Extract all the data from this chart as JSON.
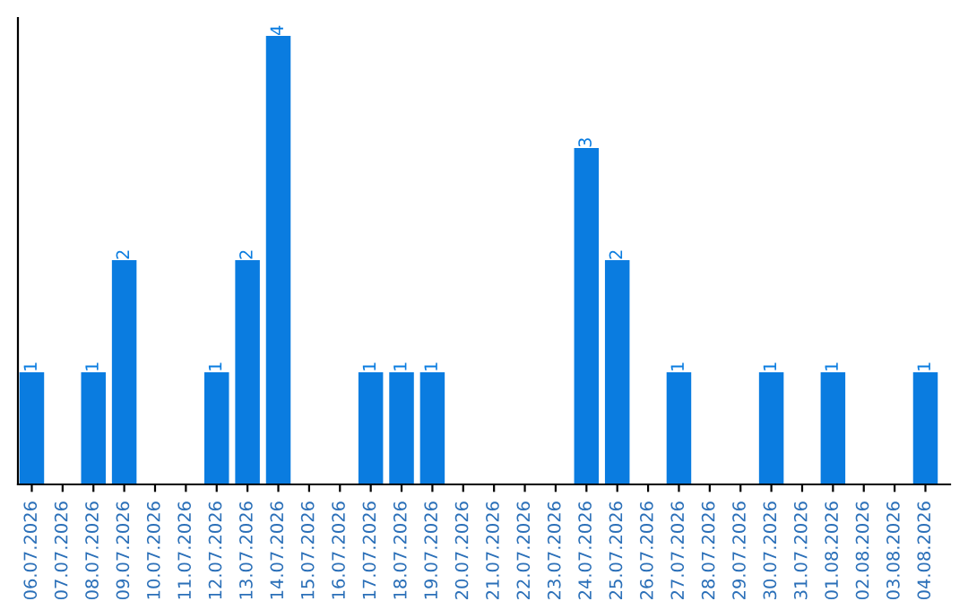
{
  "chart_data": {
    "type": "bar",
    "categories": [
      "06.07.2026",
      "07.07.2026",
      "08.07.2026",
      "09.07.2026",
      "10.07.2026",
      "11.07.2026",
      "12.07.2026",
      "13.07.2026",
      "14.07.2026",
      "15.07.2026",
      "16.07.2026",
      "17.07.2026",
      "18.07.2026",
      "19.07.2026",
      "20.07.2026",
      "21.07.2026",
      "22.07.2026",
      "23.07.2026",
      "24.07.2026",
      "25.07.2026",
      "26.07.2026",
      "27.07.2026",
      "28.07.2026",
      "29.07.2026",
      "30.07.2026",
      "31.07.2026",
      "01.08.2026",
      "02.08.2026",
      "03.08.2026",
      "04.08.2026"
    ],
    "values": [
      1,
      0,
      1,
      2,
      0,
      0,
      1,
      2,
      4,
      0,
      0,
      1,
      1,
      1,
      0,
      0,
      0,
      0,
      3,
      2,
      0,
      1,
      0,
      0,
      1,
      0,
      1,
      0,
      0,
      1
    ],
    "value_labels": [
      "1",
      null,
      "1",
      "2",
      null,
      null,
      "1",
      "2",
      "4",
      null,
      null,
      "1",
      "1",
      "1",
      null,
      null,
      null,
      null,
      "3",
      "2",
      null,
      "1",
      null,
      null,
      "1",
      null,
      "1",
      null,
      null,
      "1"
    ],
    "color": "#0a7ce0",
    "tick_labels": "x",
    "grid": false,
    "legend": false
  }
}
